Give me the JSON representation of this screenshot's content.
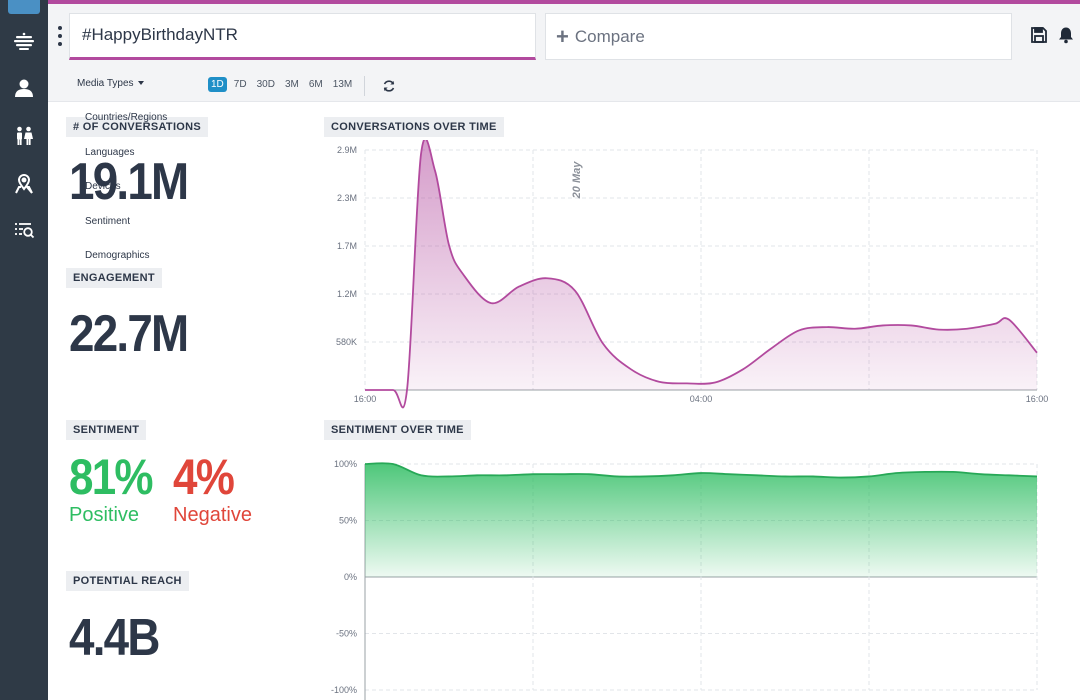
{
  "colors": {
    "accent": "#b24a9e",
    "sidebar": "#2f3a46",
    "positive": "#2ebd62",
    "negative": "#e0463a",
    "range_active": "#1f8fc7"
  },
  "sidebar": {
    "items": [
      {
        "name": "dashboard-icon"
      },
      {
        "name": "stream-icon"
      },
      {
        "name": "user-icon"
      },
      {
        "name": "people-icon"
      },
      {
        "name": "location-pin-icon"
      },
      {
        "name": "search-list-icon"
      }
    ]
  },
  "header": {
    "query": "#HappyBirthdayNTR",
    "compare_label": "Compare"
  },
  "toolbar": {
    "media_types": "Media Types",
    "ranges": [
      "1D",
      "7D",
      "30D",
      "3M",
      "6M",
      "13M"
    ],
    "active_range": "1D"
  },
  "dropdown": {
    "items": [
      "Countries/Regions",
      "Languages",
      "Devices",
      "Sentiment",
      "Demographics"
    ]
  },
  "stats": {
    "conversations_label": "# OF CONVERSATIONS",
    "conversations_value": "19.1M",
    "engagement_label": "ENGAGEMENT",
    "engagement_value": "22.7M",
    "sentiment_label": "SENTIMENT",
    "positive_value": "81%",
    "positive_label": "Positive",
    "negative_value": "4%",
    "negative_label": "Negative",
    "reach_label": "POTENTIAL REACH",
    "reach_value": "4.4B"
  },
  "chart_data": [
    {
      "type": "area",
      "title": "CONVERSATIONS OVER TIME",
      "x": [
        "16:00",
        "17:00",
        "18:00",
        "18:30",
        "19:00",
        "19:30",
        "20:00",
        "21:00",
        "22:00",
        "23:00",
        "00:00",
        "01:00",
        "02:00",
        "03:00",
        "04:00",
        "05:00",
        "06:00",
        "07:00",
        "08:00",
        "09:00",
        "10:00",
        "11:00",
        "12:00",
        "13:00",
        "14:00",
        "15:00",
        "15:30",
        "16:00"
      ],
      "series": [
        {
          "values": [
            0,
            0,
            0,
            2850000,
            2650000,
            1750000,
            1400000,
            1050000,
            1250000,
            1350000,
            1200000,
            560000,
            250000,
            100000,
            80000,
            90000,
            250000,
            500000,
            720000,
            760000,
            740000,
            780000,
            780000,
            730000,
            740000,
            800000,
            850000,
            450000
          ]
        }
      ],
      "x_ticks": [
        "16:00",
        "04:00",
        "16:00"
      ],
      "y_ticks": [
        "580K",
        "1.2M",
        "1.7M",
        "2.3M",
        "2.9M"
      ],
      "ylim": [
        0,
        2900000
      ],
      "annotation": "20 May",
      "color": "#b24a9e"
    },
    {
      "type": "area",
      "title": "SENTIMENT OVER TIME",
      "x": [
        "16:00",
        "17:00",
        "18:00",
        "19:00",
        "20:00",
        "21:00",
        "22:00",
        "23:00",
        "00:00",
        "01:00",
        "02:00",
        "03:00",
        "04:00",
        "05:00",
        "06:00",
        "07:00",
        "08:00",
        "09:00",
        "10:00",
        "11:00",
        "12:00",
        "13:00",
        "14:00",
        "15:00",
        "16:00"
      ],
      "series": [
        {
          "values": [
            100,
            100,
            90,
            89,
            90,
            90,
            91,
            91,
            91,
            89,
            89,
            90,
            92,
            91,
            90,
            89,
            89,
            88,
            89,
            92,
            93,
            93,
            91,
            90,
            89
          ]
        }
      ],
      "y_ticks": [
        "100%",
        "50%",
        "0%",
        "-50%",
        "-100%"
      ],
      "ylim": [
        -100,
        100
      ],
      "color": "#2ebd62"
    }
  ]
}
